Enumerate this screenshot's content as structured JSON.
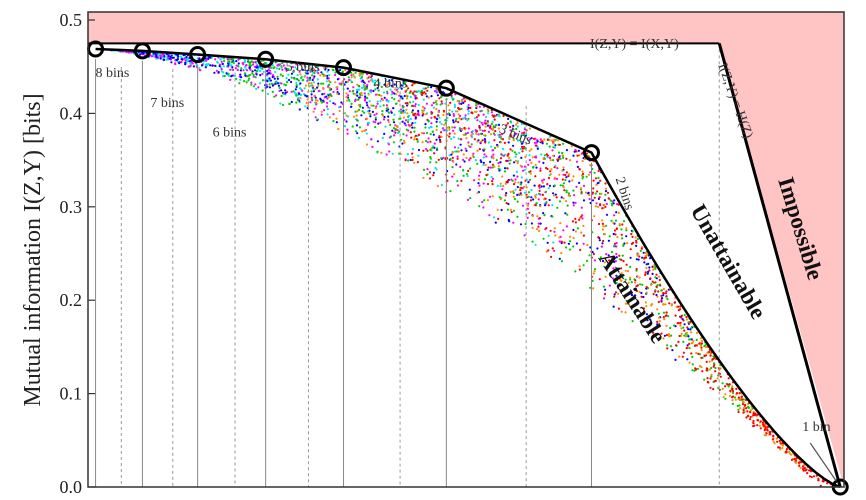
{
  "chart_data": {
    "type": "scatter",
    "title": "",
    "xlabel": "",
    "ylabel": "Mutual information I(Z,Y) [bits]",
    "ylim": [
      0,
      0.5
    ],
    "xlim": [
      0,
      1
    ],
    "yticks": [
      "0.0",
      "0.1",
      "0.2",
      "0.3",
      "0.4",
      "0.5"
    ],
    "grid": false,
    "frontier_points": [
      {
        "label": "8 bins",
        "x": 0.01,
        "y": 0.469
      },
      {
        "label": "7 bins",
        "x": 0.072,
        "y": 0.467
      },
      {
        "label": "6 bins",
        "x": 0.145,
        "y": 0.463
      },
      {
        "label": "5 bins",
        "x": 0.235,
        "y": 0.458
      },
      {
        "label": "4 bins",
        "x": 0.338,
        "y": 0.449
      },
      {
        "label": "3 bins",
        "x": 0.474,
        "y": 0.427
      },
      {
        "label": "2 bins",
        "x": 0.666,
        "y": 0.358
      },
      {
        "label": "1 bin",
        "x": 0.995,
        "y": 0.0
      }
    ],
    "top_line_y": 0.475,
    "annotations": {
      "top_line": "I(Z,Y) = I(X,Y)",
      "diagonal": "I(Z,Y) = H(Z)",
      "attainable": "Attainable",
      "unattainable": "Unattainable",
      "impossible": "Impossible"
    },
    "colors": {
      "impossible_fill": "#ffc4c4",
      "frontier": "#000000",
      "series": [
        "#ff0000",
        "#ff8c00",
        "#00cc00",
        "#0000ff",
        "#ff00ff",
        "#00e5ee"
      ]
    }
  }
}
